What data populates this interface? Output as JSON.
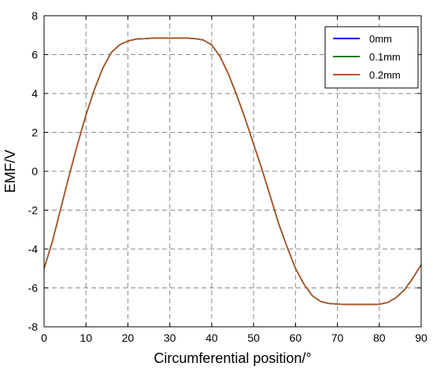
{
  "chart_data": {
    "type": "line",
    "xlabel": "Circumferential position/°",
    "ylabel": "EMF/V",
    "xlim": [
      0,
      90
    ],
    "ylim": [
      -8,
      8
    ],
    "xticks": [
      0,
      10,
      20,
      30,
      40,
      50,
      60,
      70,
      80,
      90
    ],
    "yticks": [
      -8,
      -6,
      -4,
      -2,
      0,
      2,
      4,
      6,
      8
    ],
    "grid": true,
    "legend_position": "top-right",
    "x": [
      0,
      2,
      4,
      6,
      8,
      10,
      12,
      14,
      16,
      18,
      20,
      22,
      24,
      26,
      28,
      30,
      32,
      34,
      36,
      38,
      40,
      42,
      44,
      46,
      48,
      50,
      52,
      54,
      56,
      58,
      60,
      62,
      64,
      66,
      68,
      70,
      72,
      74,
      76,
      78,
      80,
      82,
      84,
      86,
      88,
      90
    ],
    "series": [
      {
        "name": "0mm",
        "color": "#0000ff",
        "values": [
          -5.0,
          -3.6,
          -1.9,
          -0.2,
          1.4,
          2.9,
          4.2,
          5.3,
          6.1,
          6.5,
          6.7,
          6.8,
          6.82,
          6.85,
          6.85,
          6.85,
          6.85,
          6.85,
          6.82,
          6.75,
          6.5,
          5.9,
          5.0,
          3.9,
          2.7,
          1.4,
          0.1,
          -1.3,
          -2.7,
          -3.9,
          -5.0,
          -5.8,
          -6.4,
          -6.7,
          -6.8,
          -6.83,
          -6.85,
          -6.85,
          -6.85,
          -6.85,
          -6.84,
          -6.75,
          -6.5,
          -6.1,
          -5.5,
          -4.8
        ]
      },
      {
        "name": "0.1mm",
        "color": "#1a7a1a",
        "values": [
          -5.0,
          -3.6,
          -1.9,
          -0.2,
          1.4,
          2.9,
          4.2,
          5.3,
          6.1,
          6.5,
          6.7,
          6.8,
          6.82,
          6.85,
          6.85,
          6.85,
          6.85,
          6.85,
          6.82,
          6.75,
          6.5,
          5.9,
          5.0,
          3.9,
          2.7,
          1.4,
          0.1,
          -1.3,
          -2.7,
          -3.9,
          -5.0,
          -5.8,
          -6.4,
          -6.7,
          -6.8,
          -6.83,
          -6.85,
          -6.85,
          -6.85,
          -6.85,
          -6.84,
          -6.75,
          -6.5,
          -6.1,
          -5.5,
          -4.8
        ]
      },
      {
        "name": "0.2mm",
        "color": "#b5521e",
        "values": [
          -5.0,
          -3.6,
          -1.9,
          -0.2,
          1.4,
          2.9,
          4.2,
          5.3,
          6.1,
          6.5,
          6.7,
          6.8,
          6.82,
          6.85,
          6.85,
          6.85,
          6.85,
          6.85,
          6.82,
          6.75,
          6.5,
          5.9,
          5.0,
          3.9,
          2.7,
          1.4,
          0.1,
          -1.3,
          -2.7,
          -3.9,
          -5.0,
          -5.8,
          -6.4,
          -6.7,
          -6.8,
          -6.83,
          -6.85,
          -6.85,
          -6.85,
          -6.85,
          -6.84,
          -6.75,
          -6.5,
          -6.1,
          -5.5,
          -4.8
        ]
      }
    ]
  }
}
